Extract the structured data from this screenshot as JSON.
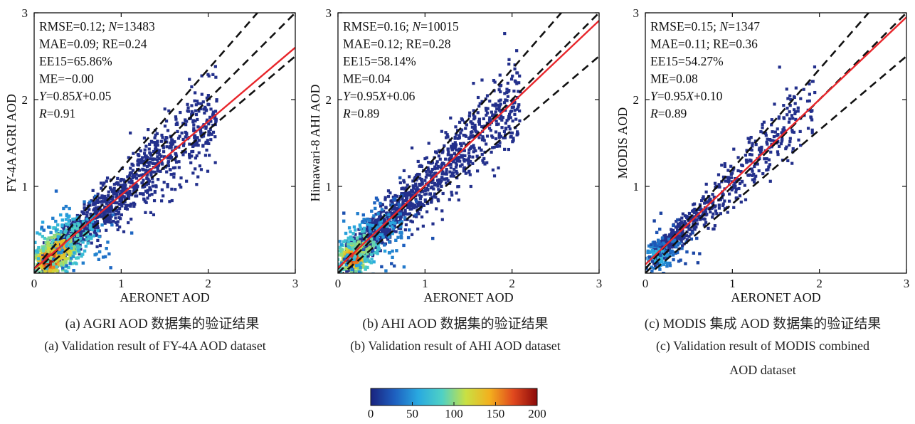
{
  "chart_data": [
    {
      "type": "scatter",
      "panel": "a",
      "xlabel": "AERONET AOD",
      "ylabel": "FY-4A AGRI AOD",
      "xlim": [
        0,
        3
      ],
      "ylim": [
        0,
        3
      ],
      "xticks": [
        0,
        1,
        2,
        3
      ],
      "yticks": [
        1,
        2,
        3
      ],
      "ytick_labels": [
        "1",
        "2",
        "3"
      ],
      "stats": [
        {
          "text": "RMSE=0.12; ",
          "italic": "N",
          "rest": "=13483"
        },
        {
          "text": "MAE=0.09; RE=0.24"
        },
        {
          "text": "EE15=65.86%"
        },
        {
          "text": "ME=−0.00"
        },
        {
          "text": "",
          "italic": "Y",
          "rest": "=0.85",
          "italic2": "X",
          "rest2": "+0.05"
        },
        {
          "text": "",
          "italic": "R",
          "rest": "=0.91"
        }
      ],
      "fit": {
        "slope": 0.85,
        "intercept": 0.05,
        "color": "#e8262b"
      },
      "ee_lines": [
        {
          "slope": 1.15,
          "intercept": 0.05
        },
        {
          "slope": 1.0,
          "intercept": 0.0
        },
        {
          "slope": 0.85,
          "intercept": -0.05
        }
      ],
      "cluster": {
        "xmax": 2.0,
        "spread": 0.22,
        "density": [
          [
            0.18,
            0.15,
            200
          ],
          [
            0.3,
            0.28,
            150
          ],
          [
            0.5,
            0.45,
            90
          ]
        ]
      },
      "caption_cn": "(a) AGRI AOD 数据集的验证结果",
      "caption_en": "(a) Validation result of FY-4A AOD dataset"
    },
    {
      "type": "scatter",
      "panel": "b",
      "xlabel": "AERONET AOD",
      "ylabel": "Himawari-8 AHI AOD",
      "xlim": [
        0,
        3
      ],
      "ylim": [
        0,
        3
      ],
      "xticks": [
        0,
        1,
        2,
        3
      ],
      "yticks": [
        1,
        2,
        3
      ],
      "ytick_labels": [
        "1",
        "2",
        "3"
      ],
      "stats": [
        {
          "text": "RMSE=0.16; ",
          "italic": "N",
          "rest": "=10015"
        },
        {
          "text": "MAE=0.12; RE=0.28"
        },
        {
          "text": "EE15=58.14%"
        },
        {
          "text": "ME=0.04"
        },
        {
          "text": "",
          "italic": "Y",
          "rest": "=0.95",
          "italic2": "X",
          "rest2": "+0.06"
        },
        {
          "text": "",
          "italic": "R",
          "rest": "=0.89"
        }
      ],
      "fit": {
        "slope": 0.95,
        "intercept": 0.06,
        "color": "#e8262b"
      },
      "ee_lines": [
        {
          "slope": 1.15,
          "intercept": 0.05
        },
        {
          "slope": 1.0,
          "intercept": 0.0
        },
        {
          "slope": 0.85,
          "intercept": -0.05
        }
      ],
      "cluster": {
        "xmax": 2.0,
        "spread": 0.24,
        "density": [
          [
            0.18,
            0.18,
            180
          ],
          [
            0.3,
            0.32,
            110
          ],
          [
            0.55,
            0.55,
            60
          ]
        ]
      },
      "caption_cn": "(b) AHI AOD 数据集的验证结果",
      "caption_en": "(b) Validation result of AHI AOD dataset"
    },
    {
      "type": "scatter",
      "panel": "c",
      "xlabel": "AERONET AOD",
      "ylabel": "MODIS AOD",
      "xlim": [
        0,
        3
      ],
      "ylim": [
        0,
        3
      ],
      "xticks": [
        0,
        1,
        2,
        3
      ],
      "yticks": [
        1,
        2,
        3
      ],
      "ytick_labels": [
        "1",
        "2",
        "3"
      ],
      "stats": [
        {
          "text": "RMSE=0.15; ",
          "italic": "N",
          "rest": "=1347"
        },
        {
          "text": "MAE=0.11; RE=0.36"
        },
        {
          "text": "EE15=54.27%"
        },
        {
          "text": "ME=0.08"
        },
        {
          "text": "",
          "italic": "Y",
          "rest": "=0.95",
          "italic2": "X",
          "rest2": "+0.10"
        },
        {
          "text": "",
          "italic": "R",
          "rest": "=0.89"
        }
      ],
      "fit": {
        "slope": 0.95,
        "intercept": 0.1,
        "color": "#e8262b"
      },
      "ee_lines": [
        {
          "slope": 1.15,
          "intercept": 0.05
        },
        {
          "slope": 1.0,
          "intercept": 0.0
        },
        {
          "slope": 0.85,
          "intercept": -0.05
        }
      ],
      "cluster": {
        "xmax": 1.85,
        "spread": 0.2,
        "density": [
          [
            0.15,
            0.2,
            70
          ],
          [
            0.3,
            0.35,
            40
          ]
        ]
      },
      "caption_cn": "(c) MODIS 集成 AOD 数据集的验证结果",
      "caption_en": "(c) Validation result of MODIS combined",
      "caption_en2": "AOD dataset"
    }
  ],
  "colorbar": {
    "min": 0,
    "max": 200,
    "ticks": [
      "0",
      "50",
      "100",
      "150",
      "200"
    ],
    "colormap": [
      "#1a237e",
      "#1e5fbf",
      "#29a9e0",
      "#4fd1c5",
      "#c9e043",
      "#f3b01e",
      "#e0481e",
      "#8b0a0a"
    ]
  },
  "colors": {
    "ee_line": "#111111",
    "fit_line": "#e8262b",
    "low_density": "#23308c"
  }
}
